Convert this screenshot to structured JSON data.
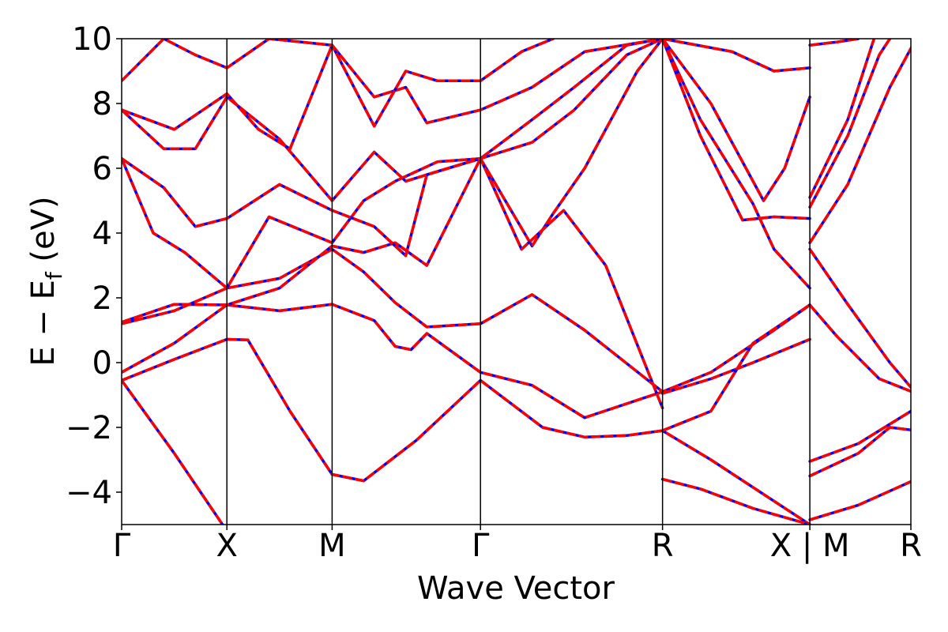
{
  "chart_data": {
    "type": "line",
    "xlabel": "Wave Vector",
    "ylabel_main": "E − E",
    "ylabel_sub": "f",
    "ylabel_unit": " (eV)",
    "ylim": [
      -5,
      10
    ],
    "xlim": [
      0,
      7.5
    ],
    "yticks": [
      -4,
      -2,
      0,
      2,
      4,
      6,
      8,
      10
    ],
    "ytick_labels": [
      "−4",
      "−2",
      "0",
      "2",
      "4",
      "6",
      "8",
      "10"
    ],
    "kpoints": [
      {
        "label": "Γ",
        "x": 0
      },
      {
        "label": "X",
        "x": 1
      },
      {
        "label": "M",
        "x": 2
      },
      {
        "label": "Γ",
        "x": 3.41
      },
      {
        "label": "R",
        "x": 5.14
      },
      {
        "label": "X | M",
        "x": 6.54
      },
      {
        "label": "R",
        "x": 7.55
      }
    ],
    "grid": false,
    "legend": "none",
    "colors": {
      "reference": "#0000ff",
      "fit": "#ff0000",
      "axis": "#000000"
    },
    "series": [
      {
        "values": [
          [
            0,
            -0.55
          ],
          [
            0.5,
            -2.8
          ],
          [
            1,
            -5.2
          ]
        ]
      },
      {
        "values": [
          [
            0,
            -0.55
          ],
          [
            0.5,
            0.1
          ],
          [
            1,
            0.72
          ],
          [
            1.2,
            0.7
          ],
          [
            1.6,
            -1.5
          ],
          [
            2,
            -3.45
          ],
          [
            2.3,
            -3.65
          ],
          [
            2.8,
            -2.4
          ],
          [
            3.41,
            -0.55
          ],
          [
            4.0,
            -2.0
          ],
          [
            4.4,
            -2.3
          ],
          [
            4.8,
            -2.25
          ],
          [
            5.14,
            -2.1
          ],
          [
            5.6,
            -3.0
          ],
          [
            6.54,
            -5.0
          ]
        ]
      },
      {
        "values": [
          [
            0,
            -0.3
          ],
          [
            0.5,
            0.6
          ],
          [
            1,
            1.78
          ],
          [
            1.5,
            1.6
          ],
          [
            2,
            1.8
          ],
          [
            2.4,
            1.3
          ],
          [
            2.6,
            0.5
          ],
          [
            2.75,
            0.4
          ],
          [
            2.9,
            0.9
          ],
          [
            3.41,
            -0.3
          ],
          [
            3.9,
            -0.7
          ],
          [
            4.4,
            -1.7
          ],
          [
            5.14,
            -0.9
          ],
          [
            5.6,
            -0.3
          ],
          [
            6.2,
            1.0
          ],
          [
            6.54,
            1.78
          ]
        ]
      },
      {
        "values": [
          [
            0,
            1.2
          ],
          [
            0.5,
            1.6
          ],
          [
            1,
            2.3
          ],
          [
            1.5,
            2.6
          ],
          [
            2,
            3.5
          ],
          [
            2.3,
            2.8
          ],
          [
            2.6,
            1.85
          ],
          [
            2.9,
            1.1
          ],
          [
            3.41,
            1.2
          ],
          [
            3.9,
            2.1
          ],
          [
            4.4,
            1.0
          ],
          [
            5.14,
            -0.9
          ]
        ]
      },
      {
        "values": [
          [
            0,
            1.25
          ],
          [
            0.5,
            1.8
          ],
          [
            1,
            1.78
          ],
          [
            1.5,
            2.3
          ],
          [
            2,
            3.6
          ],
          [
            2.3,
            3.4
          ],
          [
            2.6,
            3.7
          ],
          [
            2.9,
            3.0
          ],
          [
            3.41,
            6.3
          ],
          [
            3.9,
            3.6
          ],
          [
            4.1,
            4.6
          ],
          [
            4.4,
            6.0
          ],
          [
            4.9,
            9.0
          ],
          [
            5.14,
            10
          ]
        ]
      },
      {
        "values": [
          [
            0,
            6.3
          ],
          [
            0.3,
            4.0
          ],
          [
            0.6,
            3.4
          ],
          [
            1,
            2.3
          ],
          [
            1.4,
            4.5
          ],
          [
            2,
            3.7
          ],
          [
            2.3,
            5.0
          ],
          [
            2.6,
            5.6
          ],
          [
            3.0,
            6.2
          ],
          [
            3.41,
            6.3
          ],
          [
            3.9,
            7.5
          ],
          [
            4.3,
            8.5
          ],
          [
            4.8,
            9.8
          ],
          [
            5.14,
            10
          ]
        ]
      },
      {
        "values": [
          [
            0,
            6.3
          ],
          [
            0.4,
            5.4
          ],
          [
            0.7,
            4.2
          ],
          [
            1,
            4.45
          ],
          [
            1.5,
            5.5
          ],
          [
            2,
            4.7
          ],
          [
            2.4,
            4.2
          ],
          [
            2.7,
            3.3
          ],
          [
            2.9,
            5.8
          ],
          [
            3.41,
            6.3
          ],
          [
            3.8,
            3.5
          ],
          [
            4.2,
            4.7
          ],
          [
            4.6,
            3.0
          ],
          [
            5.14,
            -1.4
          ]
        ]
      },
      {
        "values": [
          [
            0,
            7.8
          ],
          [
            0.4,
            6.6
          ],
          [
            0.7,
            6.6
          ],
          [
            1,
            8.2
          ],
          [
            1.5,
            6.9
          ],
          [
            2,
            5.0
          ],
          [
            2.4,
            6.5
          ],
          [
            2.7,
            5.6
          ],
          [
            3.0,
            5.9
          ],
          [
            3.41,
            6.3
          ],
          [
            3.9,
            6.8
          ],
          [
            4.3,
            7.8
          ],
          [
            4.8,
            9.5
          ],
          [
            5.14,
            10
          ]
        ]
      },
      {
        "values": [
          [
            0,
            7.8
          ],
          [
            0.5,
            7.2
          ],
          [
            1,
            8.3
          ],
          [
            1.3,
            7.2
          ],
          [
            1.6,
            6.6
          ],
          [
            2,
            9.8
          ],
          [
            2.4,
            8.2
          ],
          [
            2.7,
            8.5
          ],
          [
            2.9,
            7.4
          ],
          [
            3.41,
            7.8
          ],
          [
            3.9,
            8.5
          ],
          [
            4.4,
            9.6
          ],
          [
            5.14,
            10
          ]
        ]
      },
      {
        "values": [
          [
            0,
            8.7
          ],
          [
            0.4,
            10
          ],
          [
            0.7,
            9.5
          ],
          [
            1,
            9.1
          ],
          [
            1.4,
            10
          ],
          [
            2,
            9.8
          ],
          [
            2.4,
            7.3
          ],
          [
            2.7,
            9.0
          ],
          [
            3.0,
            8.7
          ],
          [
            3.41,
            8.7
          ],
          [
            3.8,
            9.6
          ],
          [
            4.1,
            10
          ]
        ]
      },
      {
        "values": [
          [
            5.14,
            -3.6
          ],
          [
            5.5,
            -3.9
          ],
          [
            6.0,
            -4.5
          ],
          [
            6.54,
            -5.0
          ]
        ]
      },
      {
        "values": [
          [
            5.14,
            -0.95
          ],
          [
            5.6,
            -0.5
          ],
          [
            6.0,
            0.0
          ],
          [
            6.54,
            0.72
          ]
        ]
      },
      {
        "values": [
          [
            5.14,
            -2.1
          ],
          [
            5.6,
            -1.5
          ],
          [
            6.0,
            0.6
          ],
          [
            6.54,
            1.78
          ]
        ]
      },
      {
        "values": [
          [
            5.14,
            10
          ],
          [
            5.5,
            7.0
          ],
          [
            5.9,
            4.4
          ],
          [
            6.2,
            4.5
          ],
          [
            6.54,
            4.45
          ]
        ]
      },
      {
        "values": [
          [
            5.14,
            10
          ],
          [
            5.5,
            7.5
          ],
          [
            6.0,
            4.9
          ],
          [
            6.2,
            3.5
          ],
          [
            6.54,
            2.3
          ]
        ]
      },
      {
        "values": [
          [
            5.14,
            10
          ],
          [
            5.6,
            8.0
          ],
          [
            6.1,
            5.0
          ],
          [
            6.3,
            6.0
          ],
          [
            6.54,
            8.2
          ]
        ]
      },
      {
        "values": [
          [
            5.14,
            10
          ],
          [
            5.8,
            9.6
          ],
          [
            6.2,
            9.0
          ],
          [
            6.54,
            9.1
          ]
        ]
      },
      {
        "values": [
          [
            6.54,
            -4.85
          ],
          [
            7.0,
            -4.4
          ],
          [
            7.55,
            -3.6
          ]
        ]
      },
      {
        "values": [
          [
            6.54,
            -3.5
          ],
          [
            7.0,
            -2.8
          ],
          [
            7.3,
            -2.0
          ],
          [
            7.55,
            -2.1
          ]
        ]
      },
      {
        "values": [
          [
            6.54,
            -3.05
          ],
          [
            7.0,
            -2.5
          ],
          [
            7.3,
            -1.9
          ],
          [
            7.55,
            -1.4
          ]
        ]
      },
      {
        "values": [
          [
            6.54,
            1.78
          ],
          [
            6.8,
            0.8
          ],
          [
            7.2,
            -0.5
          ],
          [
            7.55,
            -0.95
          ]
        ]
      },
      {
        "values": [
          [
            6.54,
            3.5
          ],
          [
            6.9,
            1.8
          ],
          [
            7.3,
            0.0
          ],
          [
            7.55,
            -0.95
          ]
        ]
      },
      {
        "values": [
          [
            6.54,
            3.7
          ],
          [
            6.9,
            5.5
          ],
          [
            7.3,
            8.5
          ],
          [
            7.55,
            10
          ]
        ]
      },
      {
        "values": [
          [
            6.54,
            4.8
          ],
          [
            6.9,
            7.0
          ],
          [
            7.2,
            9.5
          ],
          [
            7.3,
            10
          ]
        ]
      },
      {
        "values": [
          [
            6.54,
            5.1
          ],
          [
            6.9,
            7.5
          ],
          [
            7.15,
            10
          ]
        ]
      },
      {
        "values": [
          [
            6.54,
            9.8
          ],
          [
            6.8,
            9.9
          ],
          [
            7.0,
            10
          ]
        ]
      }
    ]
  }
}
